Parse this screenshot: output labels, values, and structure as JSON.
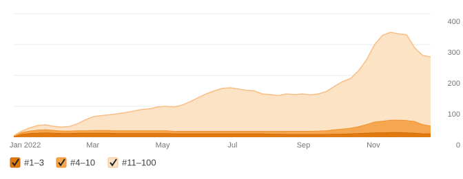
{
  "chart_data": {
    "type": "stacked-area",
    "x": [
      -10,
      -3,
      4,
      11,
      18,
      25,
      32,
      39,
      46,
      53,
      60,
      67,
      74,
      81,
      88,
      95,
      102,
      109,
      116,
      123,
      130,
      137,
      144,
      151,
      158,
      165,
      172,
      179,
      186,
      193,
      200,
      207,
      214,
      221,
      228,
      235,
      242,
      249,
      256,
      263,
      270,
      277,
      284,
      291,
      298,
      305,
      312,
      319,
      326,
      333,
      340,
      347,
      354
    ],
    "xlim": [
      -10,
      354
    ],
    "xticks": [
      {
        "value": 0,
        "label": "Jan 2022"
      },
      {
        "value": 59,
        "label": "Mar"
      },
      {
        "value": 120,
        "label": "May"
      },
      {
        "value": 181,
        "label": "Jul"
      },
      {
        "value": 243,
        "label": "Sep"
      },
      {
        "value": 304,
        "label": "Nov"
      }
    ],
    "ylim": [
      0,
      400
    ],
    "yticks": [
      0,
      100,
      200,
      300,
      400
    ],
    "grid": true,
    "series": [
      {
        "name": "#1–3",
        "color": "#c86500",
        "fill": "#e07a10",
        "values": [
          2,
          10,
          13,
          14,
          15,
          14,
          13,
          13,
          14,
          14,
          14,
          14,
          14,
          13,
          13,
          13,
          13,
          13,
          13,
          13,
          12,
          12,
          12,
          12,
          12,
          12,
          12,
          12,
          12,
          12,
          12,
          12,
          11,
          11,
          10,
          10,
          10,
          10,
          10,
          10,
          11,
          11,
          12,
          13,
          14,
          15,
          15,
          16,
          16,
          15,
          14,
          12,
          12
        ]
      },
      {
        "name": "#4–10",
        "color": "#f0891a",
        "fill": "#f7a650",
        "values": [
          2,
          6,
          8,
          10,
          10,
          9,
          8,
          8,
          8,
          8,
          9,
          9,
          9,
          9,
          9,
          9,
          9,
          9,
          9,
          9,
          8,
          8,
          8,
          8,
          8,
          8,
          8,
          8,
          8,
          8,
          8,
          8,
          9,
          9,
          10,
          10,
          10,
          10,
          11,
          12,
          14,
          16,
          18,
          22,
          28,
          35,
          38,
          40,
          40,
          40,
          38,
          30,
          25
        ]
      },
      {
        "name": "#11–100",
        "color": "#f8be84",
        "fill": "#fde3c6",
        "values": [
          1,
          4,
          9,
          14,
          15,
          12,
          12,
          14,
          22,
          35,
          44,
          47,
          50,
          54,
          58,
          63,
          68,
          70,
          76,
          78,
          78,
          84,
          95,
          108,
          120,
          130,
          138,
          140,
          136,
          132,
          130,
          120,
          118,
          115,
          120,
          118,
          120,
          117,
          119,
          126,
          140,
          153,
          160,
          180,
          208,
          250,
          277,
          284,
          279,
          277,
          238,
          223,
          223
        ]
      }
    ]
  }
}
